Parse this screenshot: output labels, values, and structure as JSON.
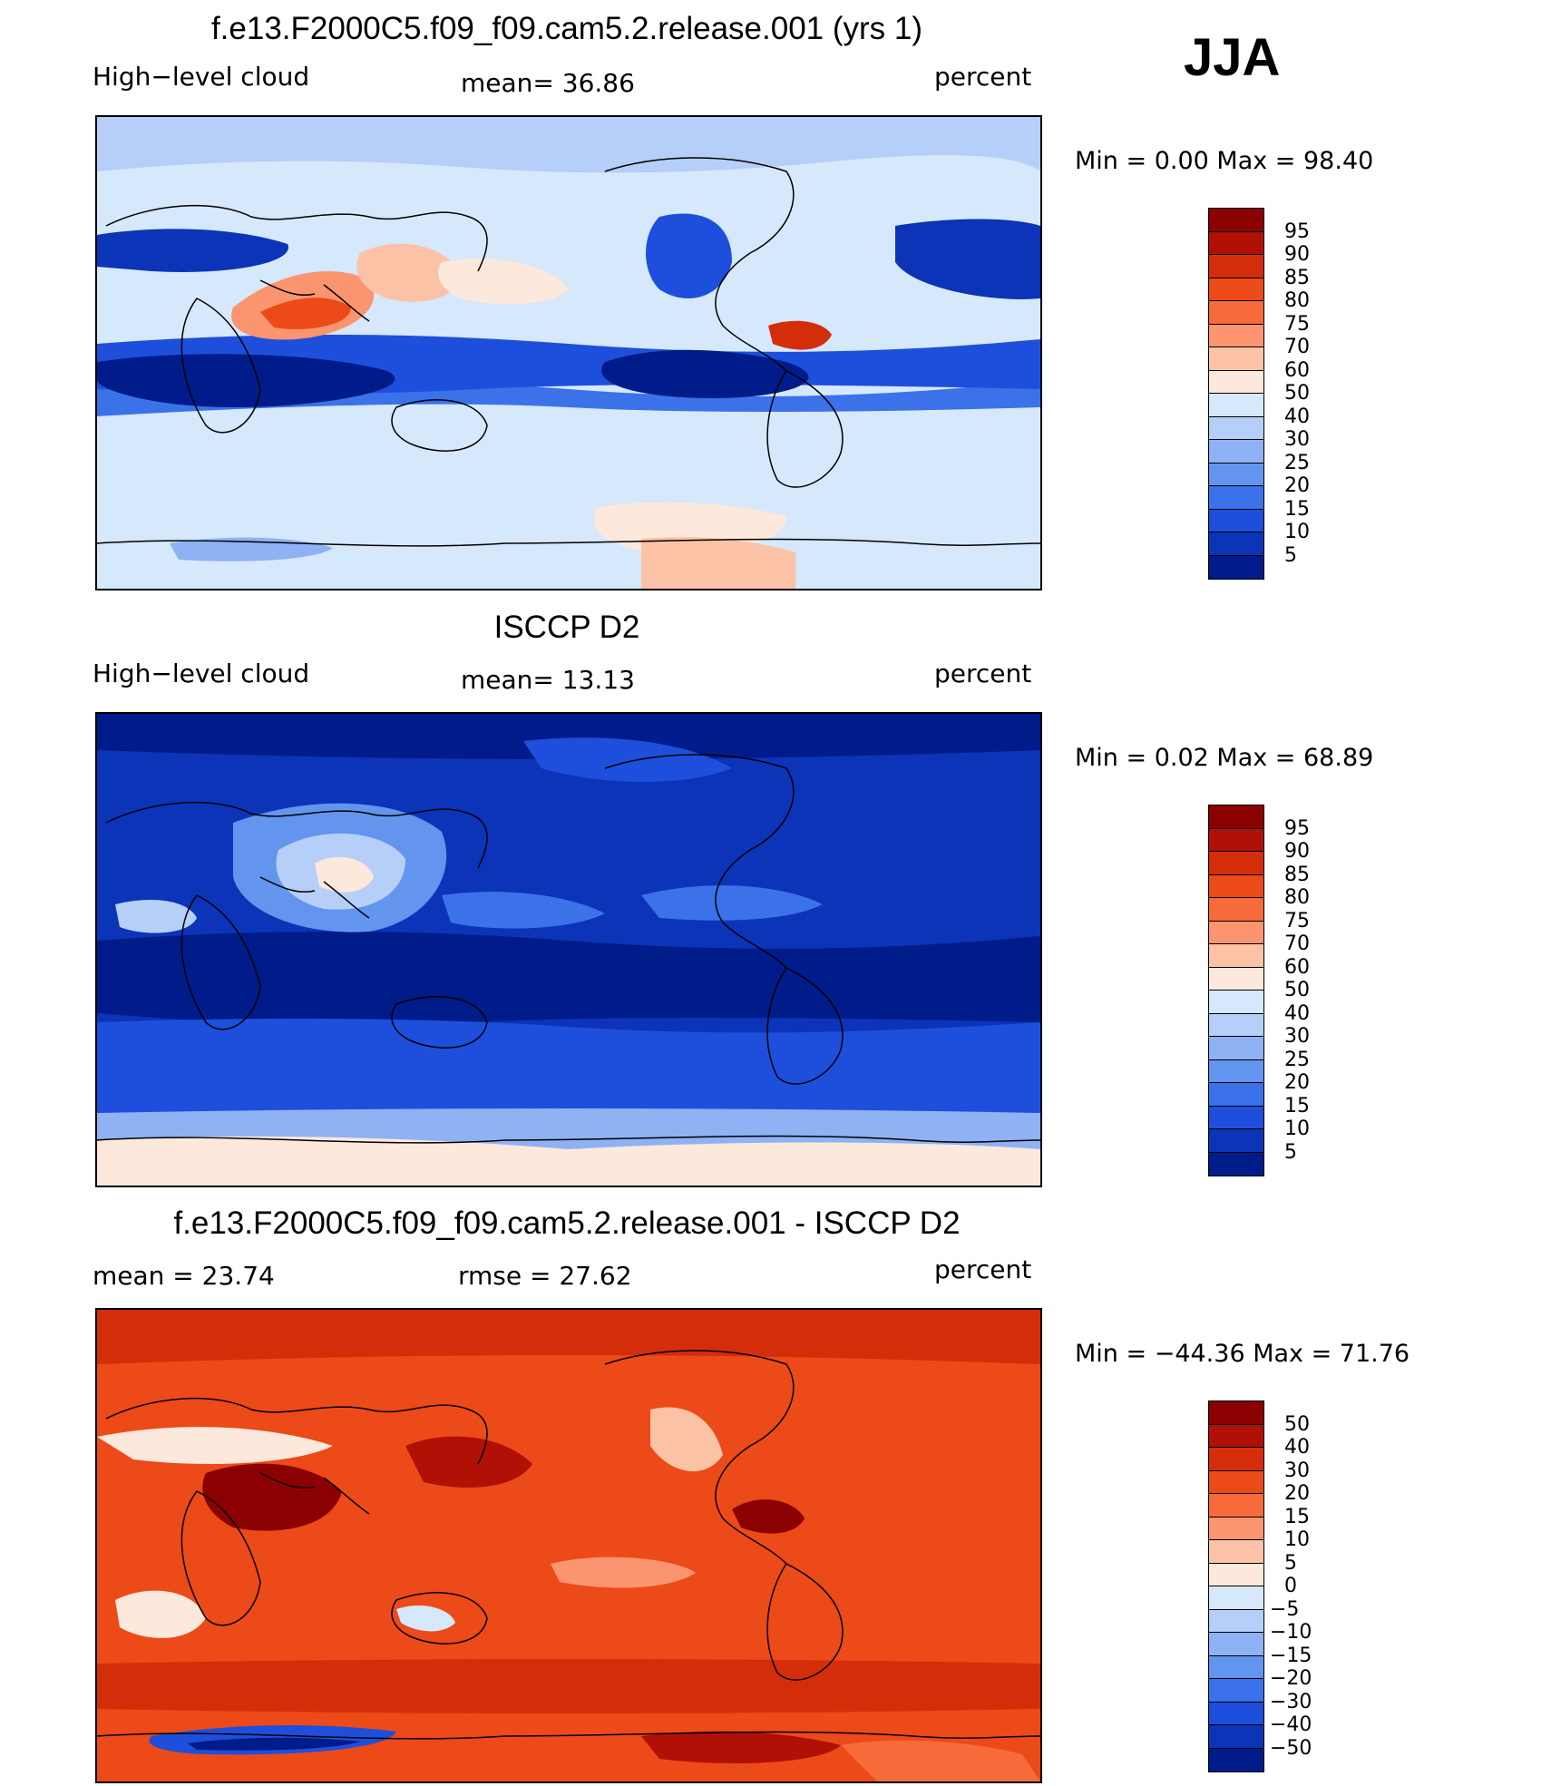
{
  "season": "JJA",
  "chart_data": [
    {
      "type": "heatmap",
      "title": "f.e13.F2000C5.f09_f09.cam5.2.release.001 (yrs 1)",
      "left_label": "High−level cloud",
      "center_label": "mean=  36.86",
      "units": "percent",
      "mean": 36.86,
      "min": 0.0,
      "max": 98.4,
      "minmax_text": "Min =    0.00 Max =   98.40",
      "colorbar_labels": [
        "95",
        "90",
        "85",
        "80",
        "75",
        "70",
        "60",
        "50",
        "40",
        "30",
        "25",
        "20",
        "15",
        "10",
        "5"
      ],
      "colorbar_colors": [
        "#8b0000",
        "#b01005",
        "#d42d0a",
        "#ec4a18",
        "#f76b3b",
        "#fb9570",
        "#fcc2a6",
        "#fde8dc",
        "#d6e8fb",
        "#b5cff8",
        "#8eb2f3",
        "#6394ee",
        "#3b72ea",
        "#1e4fdc",
        "#0c34b8",
        "#001c8a"
      ]
    },
    {
      "type": "heatmap",
      "title": "ISCCP D2",
      "left_label": "High−level cloud",
      "center_label": "mean=  13.13",
      "units": "percent",
      "mean": 13.13,
      "min": 0.02,
      "max": 68.89,
      "minmax_text": "Min =    0.02 Max =   68.89",
      "colorbar_labels": [
        "95",
        "90",
        "85",
        "80",
        "75",
        "70",
        "60",
        "50",
        "40",
        "30",
        "25",
        "20",
        "15",
        "10",
        "5"
      ],
      "colorbar_colors": [
        "#8b0000",
        "#b01005",
        "#d42d0a",
        "#ec4a18",
        "#f76b3b",
        "#fb9570",
        "#fcc2a6",
        "#fde8dc",
        "#d6e8fb",
        "#b5cff8",
        "#8eb2f3",
        "#6394ee",
        "#3b72ea",
        "#1e4fdc",
        "#0c34b8",
        "#001c8a"
      ]
    },
    {
      "type": "heatmap",
      "title": "f.e13.F2000C5.f09_f09.cam5.2.release.001 - ISCCP D2",
      "left_label": "mean =   23.74",
      "center_label": "rmse =   27.62",
      "units": "percent",
      "mean": 23.74,
      "rmse": 27.62,
      "min": -44.36,
      "max": 71.76,
      "minmax_text": "Min = −44.36 Max =   71.76",
      "colorbar_labels": [
        "50",
        "40",
        "30",
        "20",
        "15",
        "10",
        "5",
        "0",
        "−5",
        "−10",
        "−15",
        "−20",
        "−30",
        "−40",
        "−50"
      ],
      "colorbar_colors": [
        "#8b0000",
        "#b01005",
        "#d42d0a",
        "#ec4a18",
        "#f76b3b",
        "#fb9570",
        "#fcc2a6",
        "#fde8dc",
        "#d6e8fb",
        "#b5cff8",
        "#8eb2f3",
        "#6394ee",
        "#3b72ea",
        "#1e4fdc",
        "#0c34b8",
        "#001c8a"
      ]
    }
  ]
}
